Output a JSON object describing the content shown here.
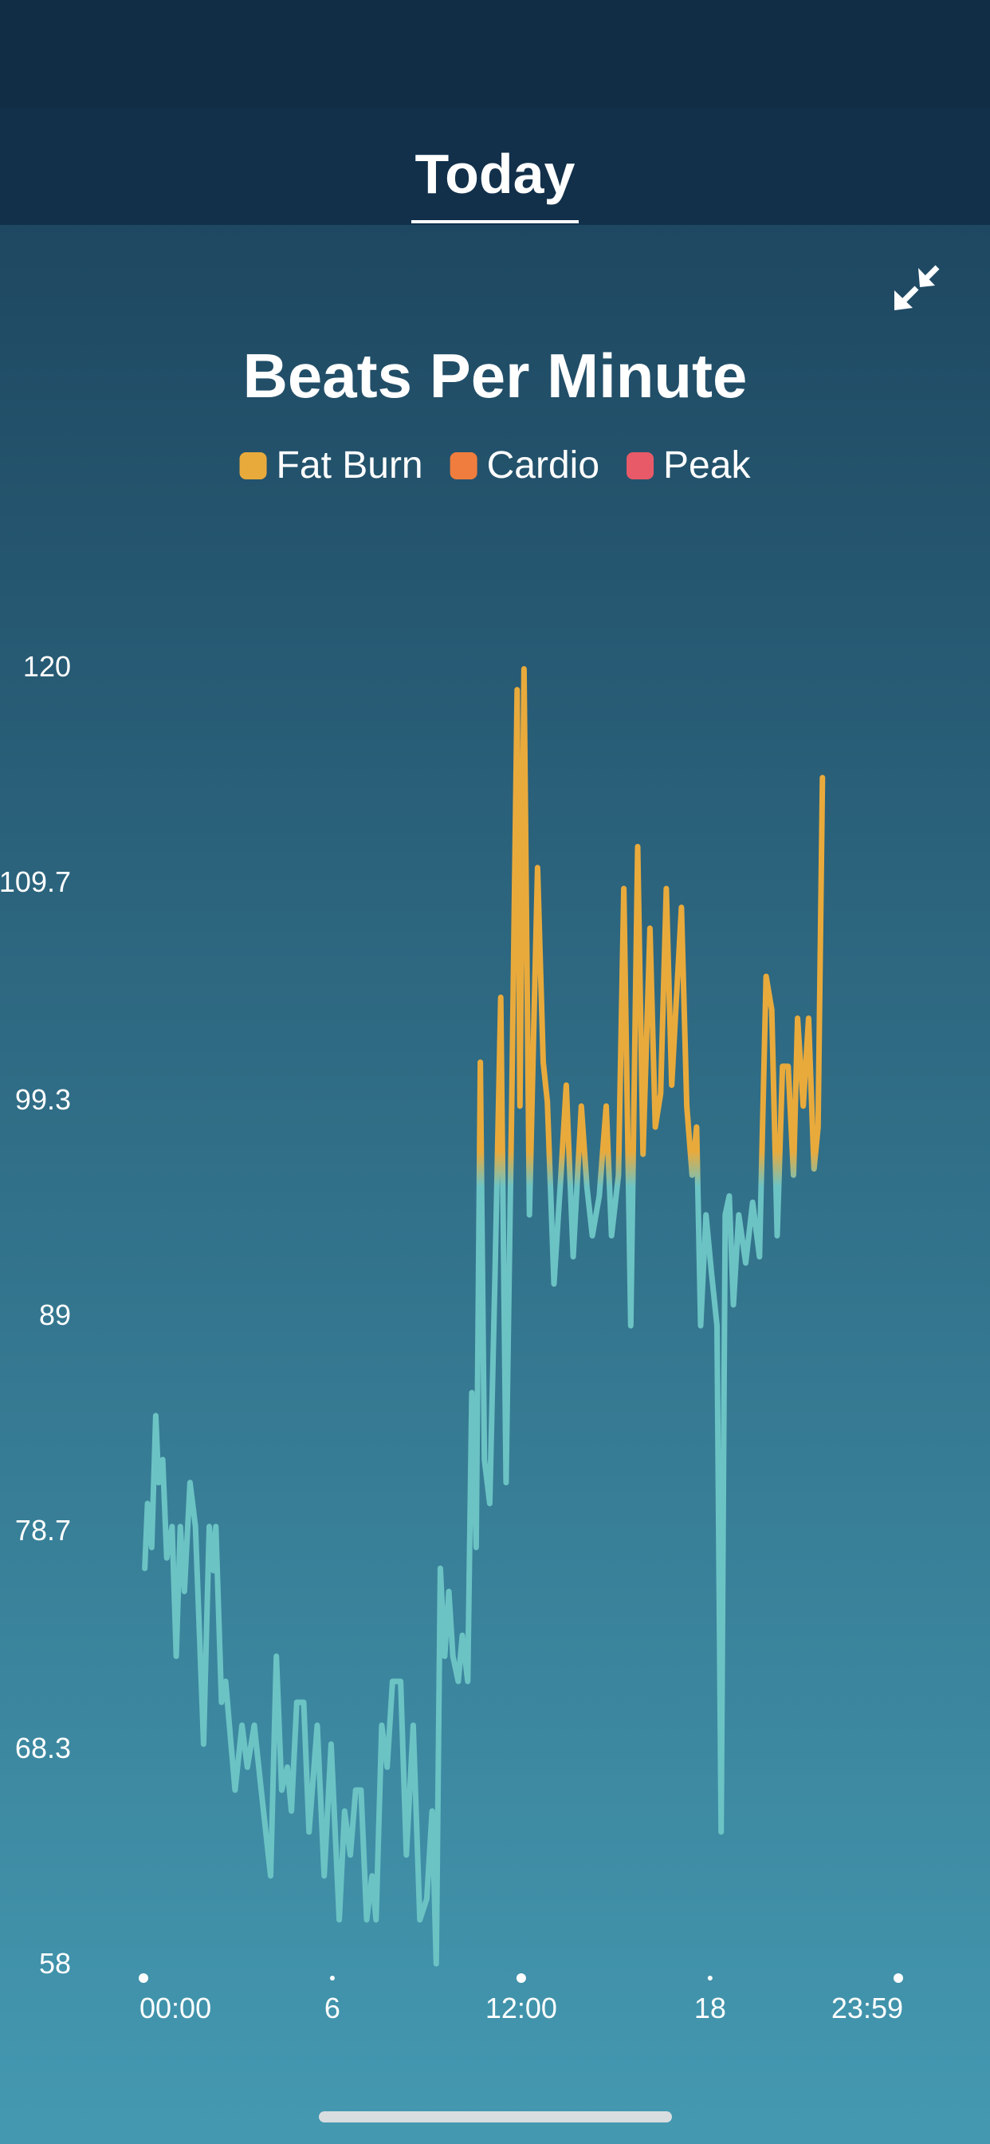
{
  "header": {
    "tab": "Today"
  },
  "chart_data": {
    "type": "line",
    "title": "Beats Per Minute",
    "legend": [
      {
        "name": "Fat Burn",
        "color": "#e9aa3c"
      },
      {
        "name": "Cardio",
        "color": "#f07d3e"
      },
      {
        "name": "Peak",
        "color": "#e85a68"
      }
    ],
    "color_threshold": 96,
    "x": [
      0.04,
      0.13,
      0.26,
      0.39,
      0.48,
      0.61,
      0.74,
      0.91,
      1.04,
      1.17,
      1.3,
      1.48,
      1.65,
      1.91,
      2.09,
      2.22,
      2.3,
      2.48,
      2.61,
      2.78,
      2.91,
      3.13,
      3.3,
      3.52,
      3.74,
      4.04,
      4.22,
      4.39,
      4.57,
      4.7,
      4.87,
      5.09,
      5.26,
      5.52,
      5.74,
      5.96,
      6.22,
      6.39,
      6.57,
      6.74,
      6.91,
      7.09,
      7.26,
      7.39,
      7.57,
      7.74,
      7.91,
      8.17,
      8.35,
      8.57,
      8.78,
      9.0,
      9.17,
      9.3,
      9.43,
      9.57,
      9.7,
      9.83,
      10.0,
      10.13,
      10.3,
      10.43,
      10.57,
      10.7,
      10.83,
      11.0,
      11.17,
      11.35,
      11.52,
      11.7,
      11.87,
      11.96,
      12.09,
      12.26,
      12.39,
      12.52,
      12.7,
      12.83,
      13.04,
      13.26,
      13.43,
      13.65,
      13.91,
      14.09,
      14.26,
      14.48,
      14.7,
      14.87,
      15.09,
      15.26,
      15.48,
      15.7,
      15.87,
      16.09,
      16.26,
      16.43,
      16.61,
      16.78,
      16.91,
      17.09,
      17.26,
      17.43,
      17.57,
      17.7,
      17.87,
      18.04,
      18.22,
      18.35,
      18.48,
      18.61,
      18.74,
      18.91,
      19.13,
      19.35,
      19.57,
      19.78,
      19.96,
      20.13,
      20.3,
      20.48,
      20.65,
      20.78,
      20.96,
      21.13,
      21.3,
      21.43,
      21.57
    ],
    "series": [
      {
        "color": "#6cc3c4",
        "values": [
          76.9,
          80,
          77.9,
          84.2,
          81,
          82.1,
          77.4,
          78.9,
          72.7,
          78.9,
          75.8,
          81,
          78.9,
          68.5,
          78.9,
          76.8,
          78.9,
          70.5,
          71.5,
          68.5,
          66.3,
          69.4,
          67.4,
          69.4,
          66.3,
          62.2,
          72.7,
          66.3,
          67.4,
          65.3,
          70.5,
          70.5,
          64.3,
          69.4,
          62.2,
          68.5,
          60.1,
          65.3,
          63.2,
          66.3,
          66.3,
          60.1,
          62.2,
          60.1,
          69.4,
          67.4,
          71.5,
          71.5,
          63.2,
          69.4,
          60.1,
          61.1,
          65.3,
          58,
          76.9,
          72.7,
          75.8,
          72.7,
          71.5,
          73.7,
          71.5,
          85.3,
          77.9,
          101.1,
          82.1,
          80,
          91.1,
          104.2,
          81,
          99.2,
          118.9,
          99,
          119.9,
          93.8,
          102.2,
          110.4,
          101.1,
          99.2,
          90.5,
          95.7,
          100,
          91.8,
          99,
          95.1,
          92.8,
          94.7,
          99,
          92.8,
          95.7,
          109.4,
          88.5,
          111.4,
          96.7,
          107.5,
          98,
          99.6,
          109.4,
          100,
          103.6,
          108.5,
          99,
          95.7,
          98,
          88.5,
          93.8,
          91.1,
          88.5,
          64.3,
          93.8,
          94.7,
          89.5,
          93.8,
          91.5,
          94.4,
          91.8,
          105.2,
          103.6,
          92.8,
          100.9,
          100.9,
          95.7,
          103.2,
          99,
          103.2,
          96,
          98,
          114.7
        ]
      }
    ],
    "xlim": [
      0,
      23.98
    ],
    "xticks": [
      {
        "value": 0,
        "label": "00:00"
      },
      6,
      {
        "value": 12,
        "label": "12:00"
      },
      18,
      {
        "value": 23.98,
        "label": "23:59"
      }
    ],
    "ylim": [
      58,
      120
    ],
    "yticks": [
      58,
      68.3,
      78.7,
      89,
      99.3,
      109.7,
      120
    ]
  }
}
